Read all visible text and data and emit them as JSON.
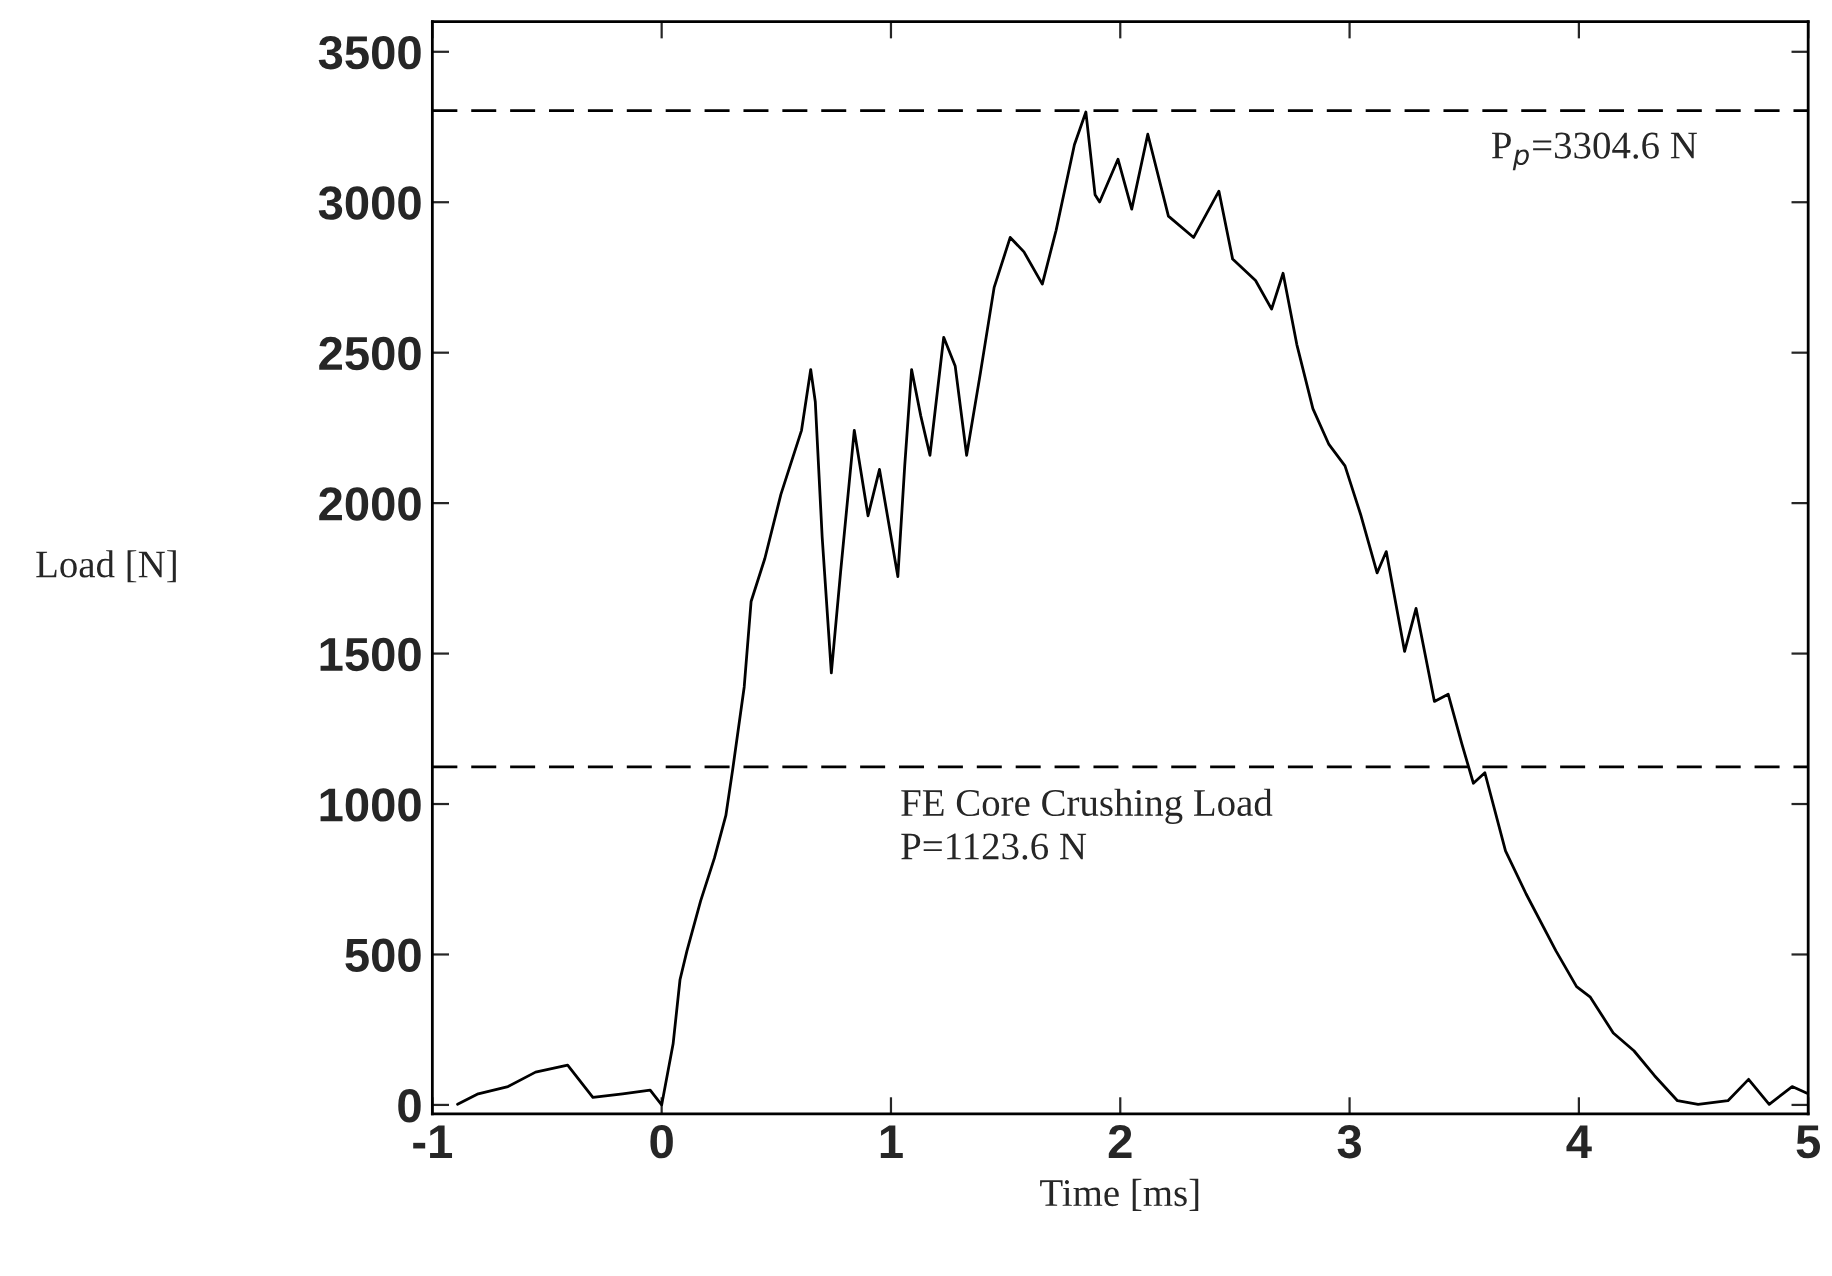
{
  "chart_data": {
    "type": "line",
    "xlabel": "Time [ms]",
    "ylabel": "Load [N]",
    "xlim": [
      -1,
      5
    ],
    "xticks": [
      -1,
      0,
      1,
      2,
      3,
      4,
      5
    ],
    "ylim": [
      -30,
      3600
    ],
    "yticks": [
      0,
      500,
      1000,
      1500,
      2000,
      2500,
      3000,
      3500
    ],
    "grid": false,
    "marker": "none",
    "line_style": "solid",
    "series": [
      {
        "color": "#000000",
        "x": [
          -0.89,
          -0.8,
          -0.67,
          -0.55,
          -0.41,
          -0.3,
          -0.17,
          -0.05,
          0.0,
          0.05,
          0.08,
          0.11,
          0.17,
          0.23,
          0.28,
          0.31,
          0.36,
          0.39,
          0.45,
          0.52,
          0.56,
          0.61,
          0.65,
          0.67,
          0.7,
          0.74,
          0.78,
          0.84,
          0.9,
          0.95,
          1.03,
          1.06,
          1.09,
          1.13,
          1.17,
          1.23,
          1.28,
          1.33,
          1.39,
          1.45,
          1.52,
          1.58,
          1.66,
          1.72,
          1.8,
          1.85,
          1.89,
          1.91,
          1.99,
          2.05,
          2.12,
          2.21,
          2.32,
          2.43,
          2.49,
          2.59,
          2.66,
          2.71,
          2.77,
          2.84,
          2.91,
          2.98,
          3.05,
          3.12,
          3.16,
          3.24,
          3.29,
          3.37,
          3.43,
          3.49,
          3.54,
          3.59,
          3.68,
          3.77,
          3.9,
          3.99,
          4.05,
          4.15,
          4.24,
          4.33,
          4.43,
          4.52,
          4.65,
          4.74,
          4.83,
          4.93,
          5.0
        ],
        "values": [
          2,
          37,
          61,
          109,
          132,
          25,
          37,
          49,
          0,
          203,
          416,
          511,
          678,
          820,
          962,
          1116,
          1389,
          1673,
          1816,
          2029,
          2124,
          2242,
          2444,
          2337,
          1887,
          1436,
          1768,
          2242,
          1958,
          2112,
          1756,
          2124,
          2444,
          2290,
          2159,
          2551,
          2456,
          2159,
          2432,
          2717,
          2883,
          2835,
          2728,
          2906,
          3191,
          3300,
          3025,
          3001,
          3143,
          2977,
          3226,
          2954,
          2883,
          3037,
          2811,
          2740,
          2645,
          2764,
          2527,
          2314,
          2195,
          2124,
          1958,
          1768,
          1839,
          1507,
          1650,
          1341,
          1365,
          1199,
          1069,
          1104,
          844,
          701,
          512,
          393,
          358,
          239,
          180,
          97,
          14,
          2,
          14,
          85,
          2,
          61,
          37
        ]
      }
    ],
    "ref_lines": [
      {
        "axis": "y",
        "value": 3304.6,
        "label": "P$_{p}$=3304.6 N",
        "line_style": "dashed",
        "color": "#000000"
      },
      {
        "axis": "y",
        "value": 1123.6,
        "label": "FE Core Crushing Load\nP=1123.6 N",
        "line_style": "dashed",
        "color": "#000000"
      }
    ]
  }
}
